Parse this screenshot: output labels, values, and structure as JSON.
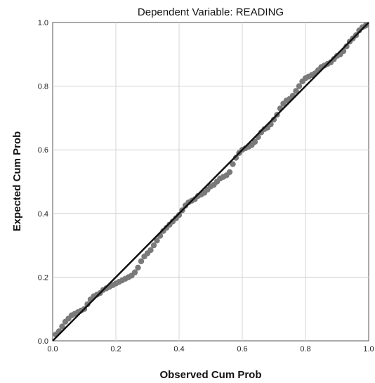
{
  "chart_data": {
    "type": "scatter",
    "title": "Dependent Variable: READING",
    "xlabel": "Observed Cum Prob",
    "ylabel": "Expected Cum Prob",
    "xlim": [
      0,
      1
    ],
    "ylim": [
      0,
      1
    ],
    "x_ticks": [
      "0.0",
      "0.2",
      "0.4",
      "0.6",
      "0.8",
      "1.0"
    ],
    "y_ticks": [
      "0.0",
      "0.2",
      "0.4",
      "0.6",
      "0.8",
      "1.0"
    ],
    "grid": true,
    "legend": "none",
    "reference_line": {
      "from": [
        0,
        0
      ],
      "to": [
        1,
        1
      ]
    },
    "colors": {
      "points": "#7a7a7a",
      "reference_line": "#111111",
      "grid": "#d4d4d4",
      "axis": "#555555"
    },
    "series": [
      {
        "points": [
          [
            0.01,
            0.02
          ],
          [
            0.02,
            0.03
          ],
          [
            0.03,
            0.045
          ],
          [
            0.04,
            0.06
          ],
          [
            0.05,
            0.07
          ],
          [
            0.06,
            0.08
          ],
          [
            0.07,
            0.085
          ],
          [
            0.08,
            0.09
          ],
          [
            0.09,
            0.095
          ],
          [
            0.1,
            0.1
          ],
          [
            0.11,
            0.115
          ],
          [
            0.12,
            0.13
          ],
          [
            0.13,
            0.14
          ],
          [
            0.14,
            0.145
          ],
          [
            0.15,
            0.15
          ],
          [
            0.16,
            0.16
          ],
          [
            0.17,
            0.165
          ],
          [
            0.18,
            0.17
          ],
          [
            0.19,
            0.175
          ],
          [
            0.2,
            0.18
          ],
          [
            0.21,
            0.185
          ],
          [
            0.22,
            0.19
          ],
          [
            0.23,
            0.195
          ],
          [
            0.24,
            0.2
          ],
          [
            0.25,
            0.205
          ],
          [
            0.26,
            0.215
          ],
          [
            0.27,
            0.23
          ],
          [
            0.28,
            0.25
          ],
          [
            0.29,
            0.265
          ],
          [
            0.3,
            0.275
          ],
          [
            0.31,
            0.285
          ],
          [
            0.32,
            0.3
          ],
          [
            0.33,
            0.315
          ],
          [
            0.34,
            0.33
          ],
          [
            0.35,
            0.345
          ],
          [
            0.36,
            0.355
          ],
          [
            0.37,
            0.365
          ],
          [
            0.38,
            0.375
          ],
          [
            0.39,
            0.385
          ],
          [
            0.4,
            0.395
          ],
          [
            0.41,
            0.41
          ],
          [
            0.42,
            0.425
          ],
          [
            0.43,
            0.435
          ],
          [
            0.44,
            0.44
          ],
          [
            0.45,
            0.445
          ],
          [
            0.46,
            0.455
          ],
          [
            0.47,
            0.46
          ],
          [
            0.48,
            0.465
          ],
          [
            0.49,
            0.475
          ],
          [
            0.5,
            0.485
          ],
          [
            0.51,
            0.49
          ],
          [
            0.52,
            0.5
          ],
          [
            0.53,
            0.51
          ],
          [
            0.54,
            0.515
          ],
          [
            0.55,
            0.52
          ],
          [
            0.56,
            0.53
          ],
          [
            0.57,
            0.555
          ],
          [
            0.58,
            0.575
          ],
          [
            0.59,
            0.59
          ],
          [
            0.6,
            0.6
          ],
          [
            0.61,
            0.605
          ],
          [
            0.62,
            0.61
          ],
          [
            0.63,
            0.615
          ],
          [
            0.64,
            0.625
          ],
          [
            0.65,
            0.64
          ],
          [
            0.66,
            0.655
          ],
          [
            0.67,
            0.665
          ],
          [
            0.68,
            0.67
          ],
          [
            0.69,
            0.68
          ],
          [
            0.7,
            0.695
          ],
          [
            0.71,
            0.71
          ],
          [
            0.72,
            0.73
          ],
          [
            0.73,
            0.745
          ],
          [
            0.74,
            0.755
          ],
          [
            0.75,
            0.76
          ],
          [
            0.76,
            0.77
          ],
          [
            0.77,
            0.785
          ],
          [
            0.78,
            0.8
          ],
          [
            0.79,
            0.815
          ],
          [
            0.8,
            0.825
          ],
          [
            0.81,
            0.83
          ],
          [
            0.82,
            0.835
          ],
          [
            0.83,
            0.84
          ],
          [
            0.84,
            0.85
          ],
          [
            0.85,
            0.86
          ],
          [
            0.86,
            0.865
          ],
          [
            0.87,
            0.87
          ],
          [
            0.88,
            0.875
          ],
          [
            0.89,
            0.885
          ],
          [
            0.9,
            0.895
          ],
          [
            0.91,
            0.9
          ],
          [
            0.92,
            0.91
          ],
          [
            0.93,
            0.925
          ],
          [
            0.94,
            0.94
          ],
          [
            0.95,
            0.95
          ],
          [
            0.96,
            0.96
          ],
          [
            0.97,
            0.975
          ],
          [
            0.98,
            0.985
          ],
          [
            0.99,
            0.99
          ]
        ]
      }
    ]
  }
}
